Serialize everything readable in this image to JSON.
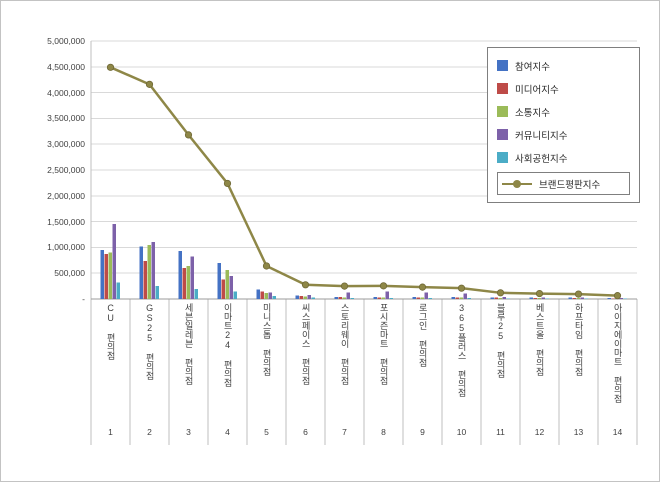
{
  "chart_data": {
    "type": "bar",
    "subtype": "grouped-bars-with-line-overlay",
    "title": "",
    "categories": [
      "CU 편의점",
      "GS25 편의점",
      "세븐일레븐 편의점",
      "이마트24 편의점",
      "미니스톱 편의점",
      "씨스페이스 편의점",
      "스토리웨이 편의점",
      "포시즌마트 편의점",
      "로그인 편의점",
      "365플러스 편의점",
      "블루25 편의점",
      "베스트올 편의점",
      "하프타임 편의점",
      "아이지에이마트 편의점"
    ],
    "category_ranks": [
      "1",
      "2",
      "3",
      "4",
      "5",
      "6",
      "7",
      "8",
      "9",
      "10",
      "11",
      "12",
      "13",
      "14"
    ],
    "series": [
      {
        "name": "참여지수",
        "color": "#4472C4",
        "values": [
          950000,
          1020000,
          930000,
          700000,
          180000,
          70000,
          40000,
          35000,
          35000,
          35000,
          30000,
          28000,
          25000,
          18000
        ]
      },
      {
        "name": "미디어지수",
        "color": "#BE4B48",
        "values": [
          870000,
          740000,
          600000,
          380000,
          150000,
          55000,
          35000,
          30000,
          30000,
          30000,
          25000,
          22000,
          20000,
          14000
        ]
      },
      {
        "name": "소통지수",
        "color": "#9BBB59",
        "values": [
          900000,
          1050000,
          640000,
          560000,
          120000,
          45000,
          30000,
          25000,
          25000,
          25000,
          20000,
          18000,
          15000,
          12000
        ]
      },
      {
        "name": "커뮤니티지수",
        "color": "#7D61A9",
        "values": [
          1450000,
          1100000,
          820000,
          450000,
          130000,
          80000,
          130000,
          150000,
          125000,
          105000,
          35000,
          28000,
          27000,
          16000
        ]
      },
      {
        "name": "사회공헌지수",
        "color": "#4BACC6",
        "values": [
          320000,
          250000,
          190000,
          150000,
          60000,
          25000,
          15000,
          15000,
          15000,
          15000,
          10000,
          9000,
          8000,
          5000
        ]
      }
    ],
    "line_series": {
      "name": "브랜드평판지수",
      "color": "#8E8747",
      "values": [
        4490000,
        4160000,
        3180000,
        2240000,
        640000,
        275000,
        250000,
        255000,
        230000,
        210000,
        120000,
        105000,
        95000,
        65000
      ]
    },
    "ylim": [
      0,
      5000000
    ],
    "ytick_step": 500000,
    "ytick_labels": [
      "-",
      "500,000",
      "1,000,000",
      "1,500,000",
      "2,000,000",
      "2,500,000",
      "3,000,000",
      "3,500,000",
      "4,000,000",
      "4,500,000",
      "5,000,000"
    ],
    "grid": true,
    "legend_position": "top-right",
    "gridline_color": "#d9d9d9",
    "axis_color": "#9b9b9b",
    "separator_color": "#bfbfbf"
  }
}
